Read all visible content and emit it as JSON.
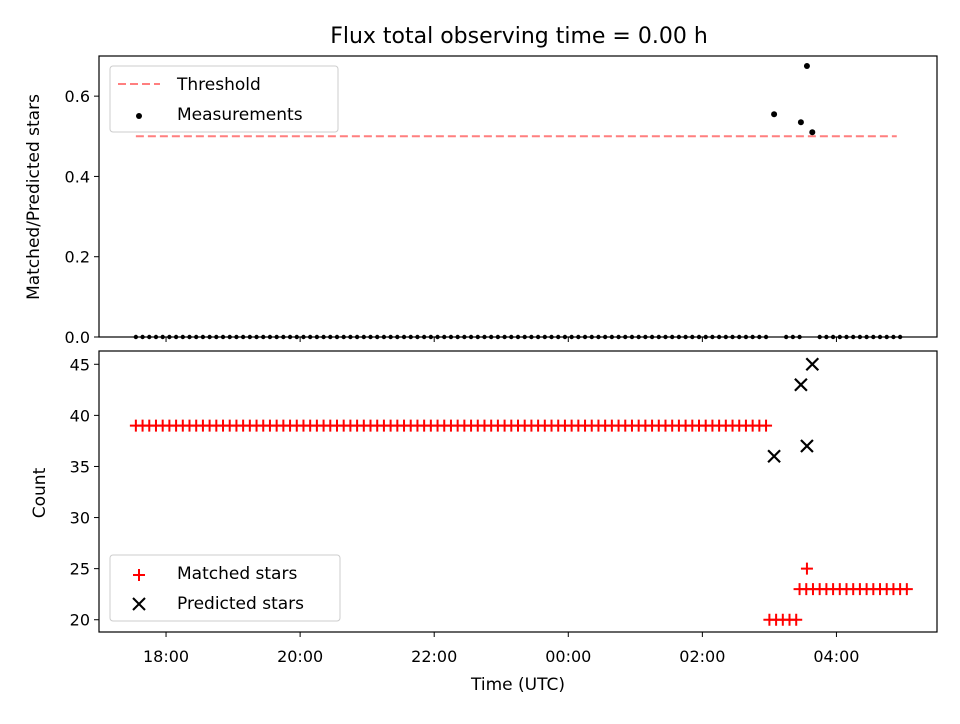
{
  "title": "Flux total observing time = 0.00 h",
  "chart_data": [
    {
      "type": "scatter",
      "panel": "top",
      "ylabel": "Matched/Predicted stars",
      "ylim": [
        0,
        0.7
      ],
      "yticks": [
        "0.0",
        "0.2",
        "0.4",
        "0.6"
      ],
      "ytick_values": [
        0,
        0.2,
        0.4,
        0.6
      ],
      "legend_placement": "upper-left",
      "threshold": {
        "name": "Threshold",
        "value": 0.5,
        "x_start": -6.45,
        "x_end": 4.9,
        "color": "#ff7f7f"
      },
      "measurements": {
        "name": "Measurements",
        "color": "#000000",
        "zero_x_start": -6.45,
        "zero_x_end": 5.0,
        "zero_step": 0.1,
        "zero_gaps": [
          [
            3.0,
            3.15
          ],
          [
            3.45,
            3.7
          ]
        ],
        "nonzero": [
          {
            "x": 3.07,
            "y": 0.555
          },
          {
            "x": 3.47,
            "y": 0.535
          },
          {
            "x": 3.56,
            "y": 0.675
          },
          {
            "x": 3.64,
            "y": 0.51
          }
        ]
      }
    },
    {
      "type": "scatter",
      "panel": "bottom",
      "xlabel": "Time (UTC)",
      "ylabel": "Count",
      "ylim": [
        18.8,
        46.3
      ],
      "yticks": [
        "20",
        "25",
        "30",
        "35",
        "40",
        "45"
      ],
      "ytick_values": [
        20,
        25,
        30,
        35,
        40,
        45
      ],
      "xlim": [
        -7.0,
        5.5
      ],
      "xticks": [
        "18:00",
        "20:00",
        "22:00",
        "00:00",
        "02:00",
        "04:00"
      ],
      "xtick_values": [
        -6,
        -4,
        -2,
        0,
        2,
        4
      ],
      "legend_placement": "lower-left",
      "matched": {
        "name": "Matched stars",
        "color": "#ff0000",
        "segments": [
          {
            "x_start": -6.45,
            "x_end": 3.0,
            "y": 39
          },
          {
            "x_start": 3.0,
            "x_end": 3.45,
            "y": 20
          },
          {
            "x_start": 3.45,
            "x_end": 5.05,
            "y": 23
          }
        ],
        "step": 0.1,
        "extra": [
          {
            "x": 3.56,
            "y": 25
          }
        ]
      },
      "predicted": {
        "name": "Predicted stars",
        "color": "#000000",
        "points": [
          {
            "x": 3.07,
            "y": 36
          },
          {
            "x": 3.47,
            "y": 43
          },
          {
            "x": 3.56,
            "y": 37
          },
          {
            "x": 3.64,
            "y": 45
          }
        ]
      }
    }
  ]
}
